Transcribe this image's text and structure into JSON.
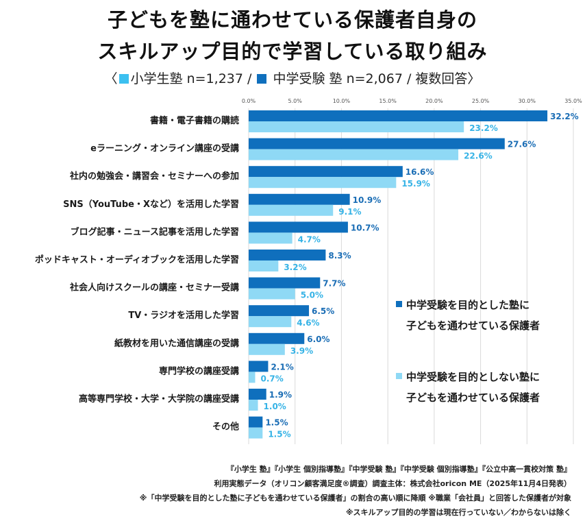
{
  "title_line1": "子どもを塾に通わせている保護者自身の",
  "title_line2": "スキルアップ目的で学習している取り組み",
  "subtitle": {
    "open": "〈",
    "part1": "小学生塾 n=1,237 / ",
    "part2": " 中学受験 塾 n=2,067 / 複数回答",
    "close": "〉"
  },
  "colors": {
    "dark": "#0f6fbd",
    "light": "#8fd9f5",
    "dark_text": "#1a6db5",
    "light_text": "#36b3e6",
    "grid": "#d9d9d9"
  },
  "chart_data": {
    "type": "bar",
    "orientation": "horizontal",
    "xlim": [
      0,
      35
    ],
    "ticks": [
      "0.0%",
      "5.0%",
      "10.0%",
      "15.0%",
      "20.0%",
      "25.0%",
      "30.0%",
      "35.0%"
    ],
    "tick_values": [
      0,
      5,
      10,
      15,
      20,
      25,
      30,
      35
    ],
    "categories": [
      "書籍・電子書籍の購読",
      "eラーニング・オンライン講座の受講",
      "社内の勉強会・講習会・セミナーへの参加",
      "SNS（YouTube・Xなど）を活用した学習",
      "ブログ記事・ニュース記事を活用した学習",
      "ポッドキャスト・オーディオブックを活用した学習",
      "社会人向けスクールの講座・セミナー受講",
      "TV・ラジオを活用した学習",
      "紙教材を用いた通信講座の受講",
      "専門学校の講座受講",
      "高等専門学校・大学・大学院の講座受講",
      "その他"
    ],
    "series": [
      {
        "name": "中学受験を目的とした塾に子どもを通わせている保護者",
        "values": [
          32.2,
          27.6,
          16.6,
          10.9,
          10.7,
          8.3,
          7.7,
          6.5,
          6.0,
          2.1,
          1.9,
          1.5
        ],
        "labels": [
          "32.2%",
          "27.6%",
          "16.6%",
          "10.9%",
          "10.7%",
          "8.3%",
          "7.7%",
          "6.5%",
          "6.0%",
          "2.1%",
          "1.9%",
          "1.5%"
        ]
      },
      {
        "name": "中学受験を目的としない塾に子どもを通わせている保護者",
        "values": [
          23.2,
          22.6,
          15.9,
          9.1,
          4.7,
          3.2,
          5.0,
          4.6,
          3.9,
          0.7,
          1.0,
          1.5
        ],
        "labels": [
          "23.2%",
          "22.6%",
          "15.9%",
          "9.1%",
          "4.7%",
          "3.2%",
          "5.0%",
          "4.6%",
          "3.9%",
          "0.7%",
          "1.0%",
          "1.5%"
        ]
      }
    ]
  },
  "legend": {
    "a_line1": "中学受験を目的とした塾に",
    "a_line2": "子どもを通わせている保護者",
    "b_line1": "中学受験を目的としない塾に",
    "b_line2": "子どもを通わせている保護者"
  },
  "footnotes": [
    "『小学生 塾』『小学生 個別指導塾』『中学受験 塾』『中学受験 個別指導塾』『公立中高一貫校対策 塾』",
    "利用実態データ（オリコン顧客満足度®調査）調査主体：株式会社oricon ME（2025年11月4日発表）",
    "※「中学受験を目的とした塾に子どもを通わせている保護者」の割合の高い順に降順 ※職業「会社員」と回答した保護者が対象",
    "※スキルアップ目的の学習は現在行っていない／わからないは除く"
  ]
}
